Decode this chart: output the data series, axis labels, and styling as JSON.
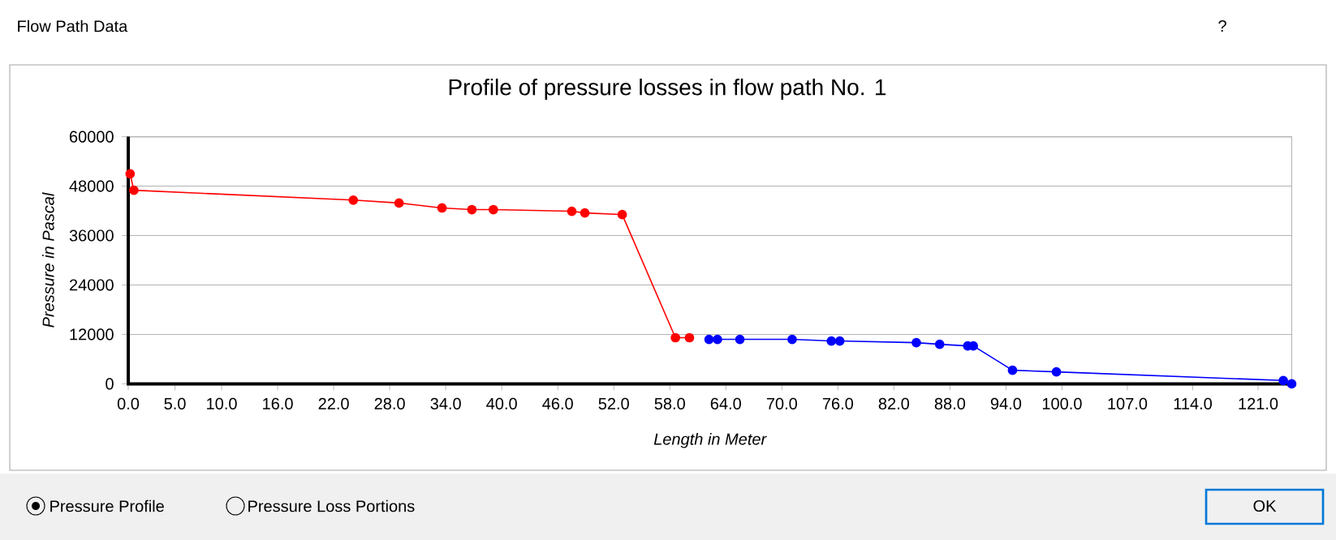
{
  "chart_data": {
    "type": "line",
    "title": "Profile of pressure losses in flow path No. 1",
    "xlabel": "Length in Meter",
    "ylabel": "Pressure in Pascal",
    "xlim": [
      0,
      124.6
    ],
    "ylim": [
      0,
      60000
    ],
    "xticks": [
      {
        "value": 0,
        "label": "0.0"
      },
      {
        "value": 5,
        "label": "5.0"
      },
      {
        "value": 10,
        "label": "10.0"
      },
      {
        "value": 16,
        "label": "16.0"
      },
      {
        "value": 22,
        "label": "22.0"
      },
      {
        "value": 28,
        "label": "28.0"
      },
      {
        "value": 34,
        "label": "34.0"
      },
      {
        "value": 40,
        "label": "40.0"
      },
      {
        "value": 46,
        "label": "46.0"
      },
      {
        "value": 52,
        "label": "52.0"
      },
      {
        "value": 58,
        "label": "58.0"
      },
      {
        "value": 64,
        "label": "64.0"
      },
      {
        "value": 70,
        "label": "70.0"
      },
      {
        "value": 76,
        "label": "76.0"
      },
      {
        "value": 82,
        "label": "82.0"
      },
      {
        "value": 88,
        "label": "88.0"
      },
      {
        "value": 94,
        "label": "94.0"
      },
      {
        "value": 100,
        "label": "100.0"
      },
      {
        "value": 107,
        "label": "107.0"
      },
      {
        "value": 114,
        "label": "114.0"
      },
      {
        "value": 121,
        "label": "121.0"
      }
    ],
    "yticks": [
      0,
      12000,
      24000,
      36000,
      48000,
      60000
    ],
    "grid": "y",
    "marker": "circle",
    "line_style": "solid",
    "series": [
      {
        "color": "#ff0000",
        "x": [
          0.2,
          0.6,
          24.1,
          29.0,
          33.6,
          36.8,
          39.1,
          47.5,
          48.9,
          52.9,
          58.6,
          60.1
        ],
        "values": [
          51000,
          47000,
          44600,
          43900,
          42700,
          42300,
          42300,
          41900,
          41500,
          41100,
          11200,
          11200
        ]
      },
      {
        "color": "#0000ff",
        "x": [
          62.2,
          63.1,
          65.5,
          71.1,
          75.3,
          76.2,
          84.4,
          86.9,
          89.9,
          90.5,
          94.7,
          99.4,
          123.7,
          124.6
        ],
        "values": [
          10800,
          10800,
          10800,
          10800,
          10400,
          10400,
          10000,
          9600,
          9200,
          9200,
          3300,
          2900,
          800,
          0
        ]
      }
    ],
    "annotations": [
      "Flow Path Data",
      "?",
      "Pressure Profile",
      "Pressure Loss Portions",
      "OK"
    ]
  }
}
